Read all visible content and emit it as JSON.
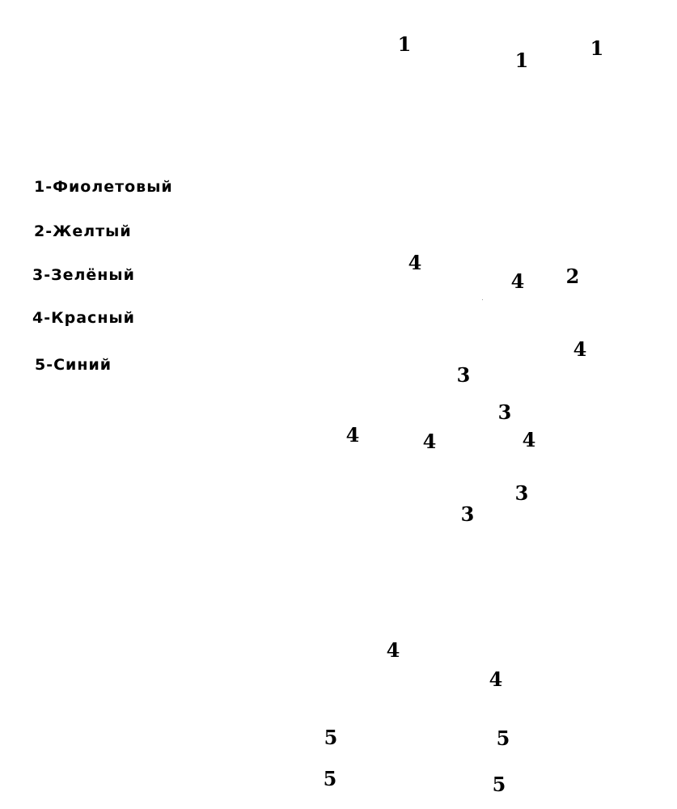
{
  "legend": [
    "1-Фиолетовый",
    "2-Желтый",
    "3-Зелёный",
    "4-Красный",
    "5-Синий"
  ],
  "markers": [
    "1",
    "1",
    "1",
    "4",
    "4",
    "2",
    "4",
    "3",
    "3",
    "4",
    "4",
    "4",
    "3",
    "3",
    "4",
    "4",
    "5",
    "5",
    "5",
    "5"
  ]
}
